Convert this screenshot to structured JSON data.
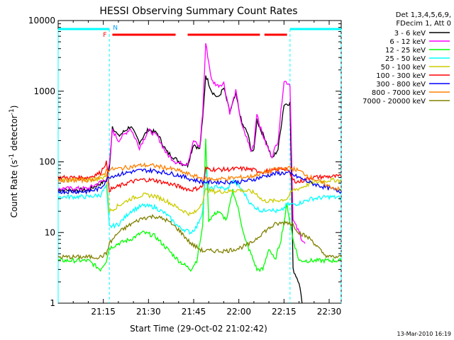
{
  "chart_data": {
    "type": "line",
    "title": "HESSI Observing Summary Count Rates",
    "xlabel": "Start Time (29-Oct-02 21:02:42)",
    "ylabel_main": "Count Rate (s",
    "ylabel_sup1": "-1",
    "ylabel_mid": " detector",
    "ylabel_sup2": "-1",
    "ylabel_end": ")",
    "yscale": "log",
    "ylim": [
      1,
      10000
    ],
    "xlim_minutes": [
      0,
      94
    ],
    "x_ticks": [
      {
        "label": "21:15",
        "minute": 15
      },
      {
        "label": "21:30",
        "minute": 30
      },
      {
        "label": "21:45",
        "minute": 45
      },
      {
        "label": "22:00",
        "minute": 60
      },
      {
        "label": "22:15",
        "minute": 75
      },
      {
        "label": "22:30",
        "minute": 90
      }
    ],
    "y_ticks": [
      {
        "label": "1",
        "value": 1
      },
      {
        "label": "10",
        "value": 10
      },
      {
        "label": "100",
        "value": 100
      },
      {
        "label": "1000",
        "value": 1000
      },
      {
        "label": "10000",
        "value": 10000
      }
    ],
    "legend_header": [
      "Det 1,3,4,5,6,9,",
      "FDecim 1, Att 0"
    ],
    "legend_placement": "right",
    "series": [
      {
        "name": "3 - 6 keV",
        "color": "#000000",
        "points": [
          [
            0,
            40
          ],
          [
            10,
            40
          ],
          [
            16,
            55
          ],
          [
            17,
            80
          ],
          [
            18,
            320
          ],
          [
            20,
            230
          ],
          [
            24,
            320
          ],
          [
            27,
            190
          ],
          [
            30,
            290
          ],
          [
            33,
            250
          ],
          [
            36,
            140
          ],
          [
            39,
            110
          ],
          [
            41,
            95
          ],
          [
            43,
            90
          ],
          [
            45,
            180
          ],
          [
            47,
            150
          ],
          [
            48,
            400
          ],
          [
            49,
            1700
          ],
          [
            51,
            1000
          ],
          [
            53,
            800
          ],
          [
            55,
            1100
          ],
          [
            57,
            500
          ],
          [
            59,
            900
          ],
          [
            61,
            350
          ],
          [
            63,
            250
          ],
          [
            64,
            150
          ],
          [
            65,
            140
          ],
          [
            66,
            400
          ],
          [
            67,
            300
          ],
          [
            69,
            200
          ],
          [
            71,
            110
          ],
          [
            73,
            150
          ],
          [
            75,
            650
          ],
          [
            77,
            680
          ],
          [
            78,
            3
          ],
          [
            80,
            2
          ],
          [
            81,
            1
          ]
        ]
      },
      {
        "name": "6 - 12 keV",
        "color": "#ff00ff",
        "points": [
          [
            0,
            42
          ],
          [
            10,
            42
          ],
          [
            16,
            57
          ],
          [
            17,
            90
          ],
          [
            18,
            280
          ],
          [
            20,
            200
          ],
          [
            24,
            300
          ],
          [
            27,
            160
          ],
          [
            30,
            280
          ],
          [
            33,
            230
          ],
          [
            36,
            130
          ],
          [
            39,
            100
          ],
          [
            41,
            95
          ],
          [
            43,
            95
          ],
          [
            45,
            200
          ],
          [
            47,
            160
          ],
          [
            48,
            500
          ],
          [
            49,
            4800
          ],
          [
            51,
            1400
          ],
          [
            53,
            1200
          ],
          [
            55,
            1300
          ],
          [
            57,
            500
          ],
          [
            59,
            1000
          ],
          [
            61,
            320
          ],
          [
            63,
            200
          ],
          [
            64,
            140
          ],
          [
            65,
            180
          ],
          [
            66,
            500
          ],
          [
            67,
            320
          ],
          [
            69,
            180
          ],
          [
            71,
            120
          ],
          [
            73,
            200
          ],
          [
            75,
            1400
          ],
          [
            77,
            1250
          ],
          [
            78,
            15
          ],
          [
            80,
            10
          ],
          [
            81,
            8
          ],
          [
            82,
            7
          ]
        ]
      },
      {
        "name": "12 - 25 keV",
        "color": "#00ff00",
        "points": [
          [
            0,
            4
          ],
          [
            10,
            4
          ],
          [
            14,
            3
          ],
          [
            16,
            4
          ],
          [
            17,
            6
          ],
          [
            20,
            7
          ],
          [
            24,
            8
          ],
          [
            28,
            10
          ],
          [
            32,
            9
          ],
          [
            36,
            6
          ],
          [
            40,
            4
          ],
          [
            44,
            3
          ],
          [
            46,
            4
          ],
          [
            48,
            12
          ],
          [
            49,
            200
          ],
          [
            50,
            15
          ],
          [
            53,
            20
          ],
          [
            56,
            15
          ],
          [
            58,
            40
          ],
          [
            60,
            20
          ],
          [
            62,
            8
          ],
          [
            64,
            5
          ],
          [
            66,
            3
          ],
          [
            68,
            3
          ],
          [
            70,
            6
          ],
          [
            72,
            4
          ],
          [
            74,
            8
          ],
          [
            76,
            25
          ],
          [
            78,
            8
          ],
          [
            80,
            4
          ],
          [
            84,
            4
          ],
          [
            90,
            4
          ],
          [
            94,
            4
          ]
        ]
      },
      {
        "name": "25 - 50 keV",
        "color": "#00ffff",
        "points": [
          [
            0,
            32
          ],
          [
            10,
            32
          ],
          [
            14,
            34
          ],
          [
            16,
            45
          ],
          [
            17,
            12
          ],
          [
            20,
            13
          ],
          [
            24,
            20
          ],
          [
            28,
            24
          ],
          [
            32,
            23
          ],
          [
            36,
            18
          ],
          [
            40,
            12
          ],
          [
            44,
            10
          ],
          [
            46,
            12
          ],
          [
            48,
            20
          ],
          [
            49,
            80
          ],
          [
            50,
            40
          ],
          [
            53,
            45
          ],
          [
            56,
            40
          ],
          [
            58,
            55
          ],
          [
            60,
            45
          ],
          [
            62,
            35
          ],
          [
            64,
            25
          ],
          [
            66,
            22
          ],
          [
            68,
            20
          ],
          [
            70,
            22
          ],
          [
            72,
            20
          ],
          [
            74,
            20
          ],
          [
            76,
            25
          ],
          [
            78,
            25
          ],
          [
            80,
            26
          ],
          [
            84,
            30
          ],
          [
            90,
            32
          ],
          [
            94,
            31
          ]
        ]
      },
      {
        "name": "50 - 100 keV",
        "color": "#cccc00",
        "points": [
          [
            0,
            56
          ],
          [
            10,
            56
          ],
          [
            14,
            58
          ],
          [
            16,
            65
          ],
          [
            17,
            20
          ],
          [
            20,
            24
          ],
          [
            24,
            30
          ],
          [
            28,
            34
          ],
          [
            32,
            33
          ],
          [
            36,
            28
          ],
          [
            40,
            22
          ],
          [
            44,
            18
          ],
          [
            46,
            20
          ],
          [
            48,
            28
          ],
          [
            49,
            40
          ],
          [
            52,
            38
          ],
          [
            56,
            38
          ],
          [
            60,
            40
          ],
          [
            64,
            38
          ],
          [
            66,
            35
          ],
          [
            68,
            28
          ],
          [
            72,
            28
          ],
          [
            76,
            30
          ],
          [
            78,
            40
          ],
          [
            80,
            42
          ],
          [
            84,
            50
          ],
          [
            90,
            55
          ],
          [
            94,
            55
          ]
        ]
      },
      {
        "name": "100 - 300 keV",
        "color": "#ff0000",
        "points": [
          [
            0,
            60
          ],
          [
            10,
            60
          ],
          [
            14,
            70
          ],
          [
            16,
            100
          ],
          [
            17,
            40
          ],
          [
            20,
            45
          ],
          [
            24,
            52
          ],
          [
            28,
            56
          ],
          [
            32,
            55
          ],
          [
            36,
            50
          ],
          [
            40,
            45
          ],
          [
            44,
            40
          ],
          [
            46,
            42
          ],
          [
            48,
            45
          ],
          [
            49,
            80
          ],
          [
            52,
            78
          ],
          [
            56,
            78
          ],
          [
            60,
            80
          ],
          [
            62,
            80
          ],
          [
            64,
            78
          ],
          [
            66,
            75
          ],
          [
            68,
            72
          ],
          [
            70,
            75
          ],
          [
            72,
            75
          ],
          [
            74,
            80
          ],
          [
            76,
            80
          ],
          [
            78,
            55
          ],
          [
            80,
            52
          ],
          [
            84,
            60
          ],
          [
            90,
            62
          ],
          [
            94,
            62
          ]
        ]
      },
      {
        "name": "300 - 800 keV",
        "color": "#0000ff",
        "points": [
          [
            0,
            38
          ],
          [
            10,
            38
          ],
          [
            14,
            42
          ],
          [
            16,
            55
          ],
          [
            17,
            62
          ],
          [
            20,
            66
          ],
          [
            24,
            72
          ],
          [
            28,
            76
          ],
          [
            32,
            75
          ],
          [
            36,
            70
          ],
          [
            40,
            65
          ],
          [
            44,
            57
          ],
          [
            48,
            52
          ],
          [
            52,
            52
          ],
          [
            56,
            52
          ],
          [
            60,
            52
          ],
          [
            64,
            55
          ],
          [
            68,
            62
          ],
          [
            72,
            68
          ],
          [
            76,
            70
          ],
          [
            78,
            65
          ],
          [
            80,
            60
          ],
          [
            84,
            50
          ],
          [
            90,
            42
          ],
          [
            94,
            38
          ]
        ]
      },
      {
        "name": "800 - 7000 keV",
        "color": "#ff8000",
        "points": [
          [
            0,
            55
          ],
          [
            10,
            55
          ],
          [
            14,
            60
          ],
          [
            16,
            75
          ],
          [
            17,
            78
          ],
          [
            20,
            80
          ],
          [
            24,
            85
          ],
          [
            28,
            90
          ],
          [
            32,
            88
          ],
          [
            36,
            82
          ],
          [
            40,
            75
          ],
          [
            44,
            65
          ],
          [
            48,
            58
          ],
          [
            52,
            57
          ],
          [
            56,
            58
          ],
          [
            60,
            60
          ],
          [
            64,
            62
          ],
          [
            68,
            70
          ],
          [
            72,
            78
          ],
          [
            76,
            82
          ],
          [
            78,
            80
          ],
          [
            80,
            75
          ],
          [
            84,
            60
          ],
          [
            90,
            45
          ],
          [
            94,
            40
          ]
        ]
      },
      {
        "name": "7000 - 20000 keV",
        "color": "#808000",
        "points": [
          [
            0,
            4.5
          ],
          [
            10,
            4.5
          ],
          [
            14,
            4.5
          ],
          [
            16,
            5
          ],
          [
            17,
            7
          ],
          [
            20,
            10
          ],
          [
            24,
            13
          ],
          [
            28,
            16
          ],
          [
            32,
            17
          ],
          [
            36,
            15
          ],
          [
            40,
            11
          ],
          [
            44,
            7
          ],
          [
            48,
            5.5
          ],
          [
            52,
            5.5
          ],
          [
            56,
            5.5
          ],
          [
            60,
            6
          ],
          [
            64,
            7
          ],
          [
            68,
            10
          ],
          [
            72,
            13
          ],
          [
            76,
            14
          ],
          [
            78,
            13
          ],
          [
            80,
            10
          ],
          [
            84,
            8
          ],
          [
            88,
            5
          ],
          [
            90,
            4.5
          ],
          [
            94,
            4.5
          ]
        ]
      }
    ],
    "flag_bars": [
      {
        "label": "",
        "color": "#00ffff",
        "segments": [
          [
            0,
            17
          ],
          [
            77,
            94
          ]
        ]
      },
      {
        "label": "F",
        "color": "#ff0000",
        "segments": [
          [
            18,
            39
          ],
          [
            43,
            67
          ],
          [
            68.5,
            76
          ]
        ]
      }
    ],
    "flag_letters": [
      {
        "text": "F",
        "minute": 15.5,
        "color": "#ff0000"
      },
      {
        "text": "N",
        "minute": 19,
        "color": "#00a0ff"
      }
    ],
    "night_boundaries_minutes": [
      0,
      17,
      77,
      94
    ]
  },
  "footer_date": "13-Mar-2010 16:19"
}
